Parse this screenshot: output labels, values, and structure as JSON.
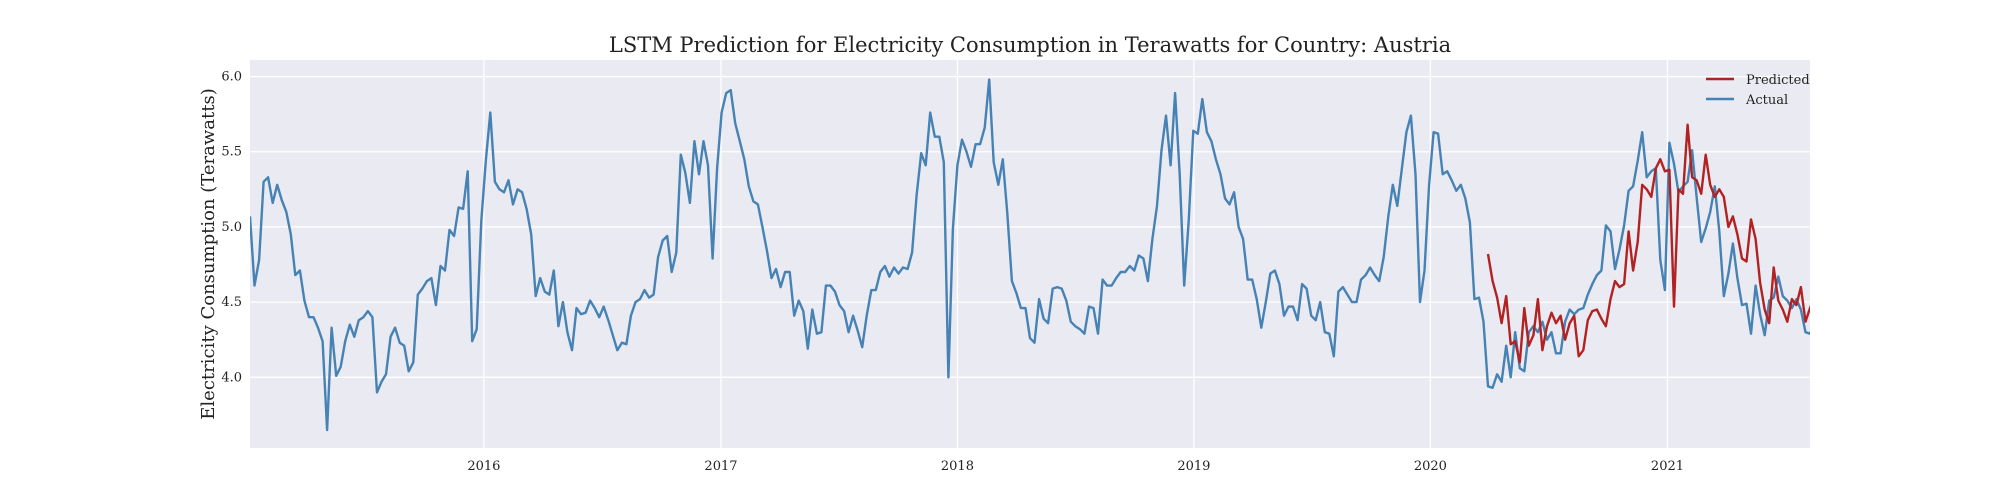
{
  "chart_data": {
    "type": "line",
    "title": "LSTM Prediction for Electricity Consumption in Terawatts for Country: Austria",
    "xlabel": "",
    "ylabel": "Electricity Consumption (Terawatts)",
    "xlim": [
      "2015-01-05",
      "2021-08-09"
    ],
    "ylim": [
      3.53,
      6.11
    ],
    "x_tick_labels": [
      "2016",
      "2017",
      "2018",
      "2019",
      "2020",
      "2021"
    ],
    "y_tick_labels": [
      "4.0",
      "4.5",
      "5.0",
      "5.5",
      "6.0"
    ],
    "grid": true,
    "legend_position": "top-right",
    "background": "#eaeaf2",
    "series": [
      {
        "name": "Actual",
        "color": "#4682b4",
        "x_start": "2015-01-05",
        "frequency": "weekly",
        "values": [
          5.07,
          4.61,
          4.78,
          5.3,
          5.33,
          5.16,
          5.28,
          5.18,
          5.1,
          4.95,
          4.68,
          4.71,
          4.51,
          4.4,
          4.4,
          4.33,
          4.24,
          3.65,
          4.33,
          4.01,
          4.07,
          4.24,
          4.35,
          4.27,
          4.38,
          4.4,
          4.44,
          4.4,
          3.9,
          3.97,
          4.02,
          4.27,
          4.33,
          4.23,
          4.21,
          4.04,
          4.1,
          4.55,
          4.59,
          4.64,
          4.66,
          4.48,
          4.74,
          4.71,
          4.98,
          4.94,
          5.13,
          5.12,
          5.37,
          4.24,
          4.32,
          5.04,
          5.44,
          5.76,
          5.3,
          5.25,
          5.23,
          5.31,
          5.15,
          5.25,
          5.23,
          5.12,
          4.95,
          4.54,
          4.66,
          4.57,
          4.55,
          4.71,
          4.34,
          4.5,
          4.3,
          4.18,
          4.46,
          4.42,
          4.43,
          4.51,
          4.46,
          4.4,
          4.47,
          4.38,
          4.28,
          4.18,
          4.23,
          4.22,
          4.41,
          4.5,
          4.52,
          4.58,
          4.53,
          4.55,
          4.8,
          4.91,
          4.94,
          4.7,
          4.83,
          5.48,
          5.36,
          5.16,
          5.57,
          5.35,
          5.57,
          5.41,
          4.79,
          5.39,
          5.76,
          5.89,
          5.91,
          5.69,
          5.57,
          5.45,
          5.27,
          5.17,
          5.15,
          5.0,
          4.84,
          4.66,
          4.72,
          4.6,
          4.7,
          4.7,
          4.41,
          4.51,
          4.44,
          4.19,
          4.45,
          4.29,
          4.3,
          4.61,
          4.61,
          4.57,
          4.48,
          4.44,
          4.3,
          4.41,
          4.31,
          4.2,
          4.41,
          4.58,
          4.58,
          4.7,
          4.74,
          4.67,
          4.73,
          4.69,
          4.73,
          4.72,
          4.83,
          5.21,
          5.49,
          5.41,
          5.76,
          5.6,
          5.6,
          5.43,
          4.0,
          4.99,
          5.41,
          5.58,
          5.5,
          5.4,
          5.55,
          5.55,
          5.66,
          5.98,
          5.43,
          5.28,
          5.45,
          5.09,
          4.64,
          4.56,
          4.46,
          4.46,
          4.26,
          4.23,
          4.52,
          4.39,
          4.36,
          4.59,
          4.6,
          4.59,
          4.51,
          4.37,
          4.34,
          4.32,
          4.29,
          4.47,
          4.46,
          4.29,
          4.65,
          4.61,
          4.61,
          4.66,
          4.7,
          4.7,
          4.74,
          4.71,
          4.81,
          4.79,
          4.64,
          4.92,
          5.14,
          5.51,
          5.74,
          5.41,
          5.89,
          5.35,
          4.61,
          5.04,
          5.64,
          5.62,
          5.85,
          5.63,
          5.57,
          5.45,
          5.35,
          5.19,
          5.15,
          5.23,
          5.0,
          4.92,
          4.65,
          4.65,
          4.52,
          4.33,
          4.5,
          4.69,
          4.71,
          4.62,
          4.41,
          4.47,
          4.47,
          4.38,
          4.62,
          4.59,
          4.41,
          4.38,
          4.5,
          4.3,
          4.29,
          4.14,
          4.57,
          4.6,
          4.55,
          4.5,
          4.5,
          4.65,
          4.68,
          4.73,
          4.68,
          4.64,
          4.8,
          5.07,
          5.28,
          5.14,
          5.39,
          5.63,
          5.74,
          5.35,
          4.5,
          4.71,
          5.28,
          5.63,
          5.62,
          5.35,
          5.37,
          5.31,
          5.24,
          5.28,
          5.19,
          5.03,
          4.52,
          4.53,
          4.37,
          3.94,
          3.93,
          4.02,
          3.97,
          4.21,
          4.0,
          4.3,
          4.06,
          4.04,
          4.3,
          4.34,
          4.3,
          4.37,
          4.25,
          4.3,
          4.16,
          4.16,
          4.37,
          4.45,
          4.42,
          4.45,
          4.46,
          4.55,
          4.62,
          4.68,
          4.71,
          5.01,
          4.97,
          4.72,
          4.85,
          5.01,
          5.24,
          5.27,
          5.44,
          5.63,
          5.33,
          5.37,
          5.39,
          4.78,
          4.58,
          5.56,
          5.42,
          5.23,
          5.27,
          5.3,
          5.51,
          5.2,
          4.9,
          4.99,
          5.1,
          5.27,
          4.97,
          4.54,
          4.69,
          4.89,
          4.66,
          4.48,
          4.49,
          4.29,
          4.61,
          4.42,
          4.28,
          4.51,
          4.53,
          4.67,
          4.54,
          4.51,
          4.46,
          4.52,
          4.45,
          4.3,
          4.29,
          4.35
        ]
      },
      {
        "name": "Predicted",
        "color": "#b22222",
        "x_start": "2020-03-30",
        "frequency": "weekly",
        "values": [
          4.82,
          4.64,
          4.53,
          4.36,
          4.54,
          4.22,
          4.24,
          4.1,
          4.46,
          4.21,
          4.28,
          4.52,
          4.18,
          4.34,
          4.43,
          4.36,
          4.41,
          4.25,
          4.36,
          4.41,
          4.14,
          4.18,
          4.38,
          4.44,
          4.45,
          4.39,
          4.34,
          4.52,
          4.64,
          4.6,
          4.62,
          4.97,
          4.71,
          4.9,
          5.28,
          5.25,
          5.2,
          5.39,
          5.45,
          5.37,
          5.38,
          4.47,
          5.25,
          5.22,
          5.68,
          5.33,
          5.31,
          5.22,
          5.48,
          5.28,
          5.2,
          5.25,
          5.2,
          5.0,
          5.07,
          4.95,
          4.79,
          4.77,
          5.05,
          4.92,
          4.63,
          4.45,
          4.36,
          4.73,
          4.51,
          4.45,
          4.37,
          4.52,
          4.48,
          4.6,
          4.37,
          4.46,
          4.53,
          4.56,
          4.34,
          4.37
        ]
      }
    ]
  }
}
